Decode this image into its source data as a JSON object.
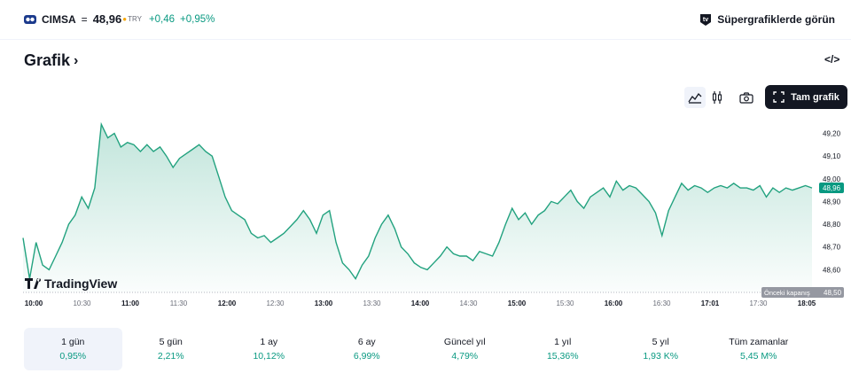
{
  "header": {
    "symbol": "CIMSA",
    "equals": "=",
    "price": "48,96",
    "currency": "TRY",
    "change": "+0,46",
    "change_pct": "+0,95%",
    "super_link": "Süpergrafiklerde görün"
  },
  "section": {
    "title": "Grafik",
    "chevron": "›",
    "embed_label": "</>"
  },
  "toolbar": {
    "fullscreen_label": "Tam grafik"
  },
  "colors": {
    "accent_green": "#089981",
    "line": "#22a27f",
    "dark": "#131722"
  },
  "chart_data": {
    "type": "area",
    "x": [
      "10:00",
      "10:04",
      "10:08",
      "10:12",
      "10:16",
      "10:20",
      "10:24",
      "10:28",
      "10:32",
      "10:36",
      "10:40",
      "10:44",
      "10:48",
      "10:52",
      "10:56",
      "11:00",
      "11:04",
      "11:08",
      "11:12",
      "11:16",
      "11:20",
      "11:24",
      "11:28",
      "11:32",
      "11:36",
      "11:40",
      "11:44",
      "11:48",
      "11:52",
      "11:56",
      "12:00",
      "12:04",
      "12:08",
      "12:12",
      "12:16",
      "12:20",
      "12:24",
      "12:28",
      "12:32",
      "12:36",
      "12:40",
      "12:44",
      "12:48",
      "12:52",
      "12:56",
      "13:00",
      "13:04",
      "13:08",
      "13:12",
      "13:16",
      "13:20",
      "13:24",
      "13:28",
      "13:32",
      "13:36",
      "13:40",
      "13:44",
      "13:48",
      "13:52",
      "13:56",
      "14:00",
      "14:04",
      "14:08",
      "14:12",
      "14:16",
      "14:20",
      "14:24",
      "14:28",
      "14:32",
      "14:36",
      "14:40",
      "14:44",
      "14:48",
      "14:52",
      "14:56",
      "15:00",
      "15:04",
      "15:08",
      "15:12",
      "15:16",
      "15:20",
      "15:24",
      "15:28",
      "15:32",
      "15:36",
      "15:40",
      "15:44",
      "15:48",
      "15:52",
      "15:56",
      "16:00",
      "16:04",
      "16:08",
      "16:12",
      "16:16",
      "16:20",
      "16:24",
      "16:28",
      "16:32",
      "16:36",
      "16:40",
      "16:44",
      "16:48",
      "16:52",
      "16:56",
      "17:01",
      "17:05",
      "17:09",
      "17:13",
      "17:17",
      "17:21",
      "17:25",
      "17:29",
      "17:33",
      "17:37",
      "17:41",
      "17:45",
      "17:49",
      "17:53",
      "17:57",
      "18:01",
      "18:05"
    ],
    "values": [
      48.74,
      48.56,
      48.72,
      48.62,
      48.6,
      48.66,
      48.72,
      48.8,
      48.84,
      48.92,
      48.87,
      48.96,
      49.24,
      49.18,
      49.2,
      49.14,
      49.16,
      49.15,
      49.12,
      49.15,
      49.12,
      49.14,
      49.1,
      49.05,
      49.09,
      49.11,
      49.13,
      49.15,
      49.12,
      49.1,
      49.01,
      48.92,
      48.86,
      48.84,
      48.82,
      48.76,
      48.74,
      48.75,
      48.72,
      48.74,
      48.76,
      48.79,
      48.82,
      48.86,
      48.82,
      48.76,
      48.84,
      48.86,
      48.72,
      48.63,
      48.6,
      48.56,
      48.62,
      48.66,
      48.74,
      48.8,
      48.84,
      48.78,
      48.7,
      48.67,
      48.63,
      48.61,
      48.6,
      48.63,
      48.66,
      48.7,
      48.67,
      48.66,
      48.66,
      48.64,
      48.68,
      48.67,
      48.66,
      48.72,
      48.8,
      48.87,
      48.82,
      48.85,
      48.8,
      48.84,
      48.86,
      48.9,
      48.89,
      48.92,
      48.95,
      48.9,
      48.87,
      48.92,
      48.94,
      48.96,
      48.92,
      48.99,
      48.95,
      48.97,
      48.96,
      48.93,
      48.9,
      48.85,
      48.75,
      48.86,
      48.92,
      48.98,
      48.95,
      48.97,
      48.96,
      48.94,
      48.96,
      48.97,
      48.96,
      48.98,
      48.96,
      48.96,
      48.95,
      48.97,
      48.92,
      48.96,
      48.94,
      48.96,
      48.95,
      48.96,
      48.97,
      48.96
    ],
    "y_ticks": [
      "49,20",
      "49,10",
      "49,00",
      "48,90",
      "48,80",
      "48,70",
      "48,60"
    ],
    "x_ticks": [
      {
        "t": "10:00",
        "bold": true
      },
      {
        "t": "10:30",
        "bold": false
      },
      {
        "t": "11:00",
        "bold": true
      },
      {
        "t": "11:30",
        "bold": false
      },
      {
        "t": "12:00",
        "bold": true
      },
      {
        "t": "12:30",
        "bold": false
      },
      {
        "t": "13:00",
        "bold": true
      },
      {
        "t": "13:30",
        "bold": false
      },
      {
        "t": "14:00",
        "bold": true
      },
      {
        "t": "14:30",
        "bold": false
      },
      {
        "t": "15:00",
        "bold": true
      },
      {
        "t": "15:30",
        "bold": false
      },
      {
        "t": "16:00",
        "bold": true
      },
      {
        "t": "16:30",
        "bold": false
      },
      {
        "t": "17:01",
        "bold": true
      },
      {
        "t": "17:30",
        "bold": false
      },
      {
        "t": "18:05",
        "bold": true
      }
    ],
    "ylim": [
      48.5,
      49.28
    ],
    "last_value_label": "48,96",
    "prev_close_label": "Önceki kapanış",
    "prev_close_value": "48,50",
    "watermark": "TradingView",
    "grid": false
  },
  "periods": [
    {
      "label": "1 gün",
      "value": "0,95%",
      "active": true
    },
    {
      "label": "5 gün",
      "value": "2,21%",
      "active": false
    },
    {
      "label": "1 ay",
      "value": "10,12%",
      "active": false
    },
    {
      "label": "6 ay",
      "value": "6,99%",
      "active": false
    },
    {
      "label": "Güncel yıl",
      "value": "4,79%",
      "active": false
    },
    {
      "label": "1 yıl",
      "value": "15,36%",
      "active": false
    },
    {
      "label": "5 yıl",
      "value": "1,93 K%",
      "active": false
    },
    {
      "label": "Tüm zamanlar",
      "value": "5,45 M%",
      "active": false
    }
  ]
}
